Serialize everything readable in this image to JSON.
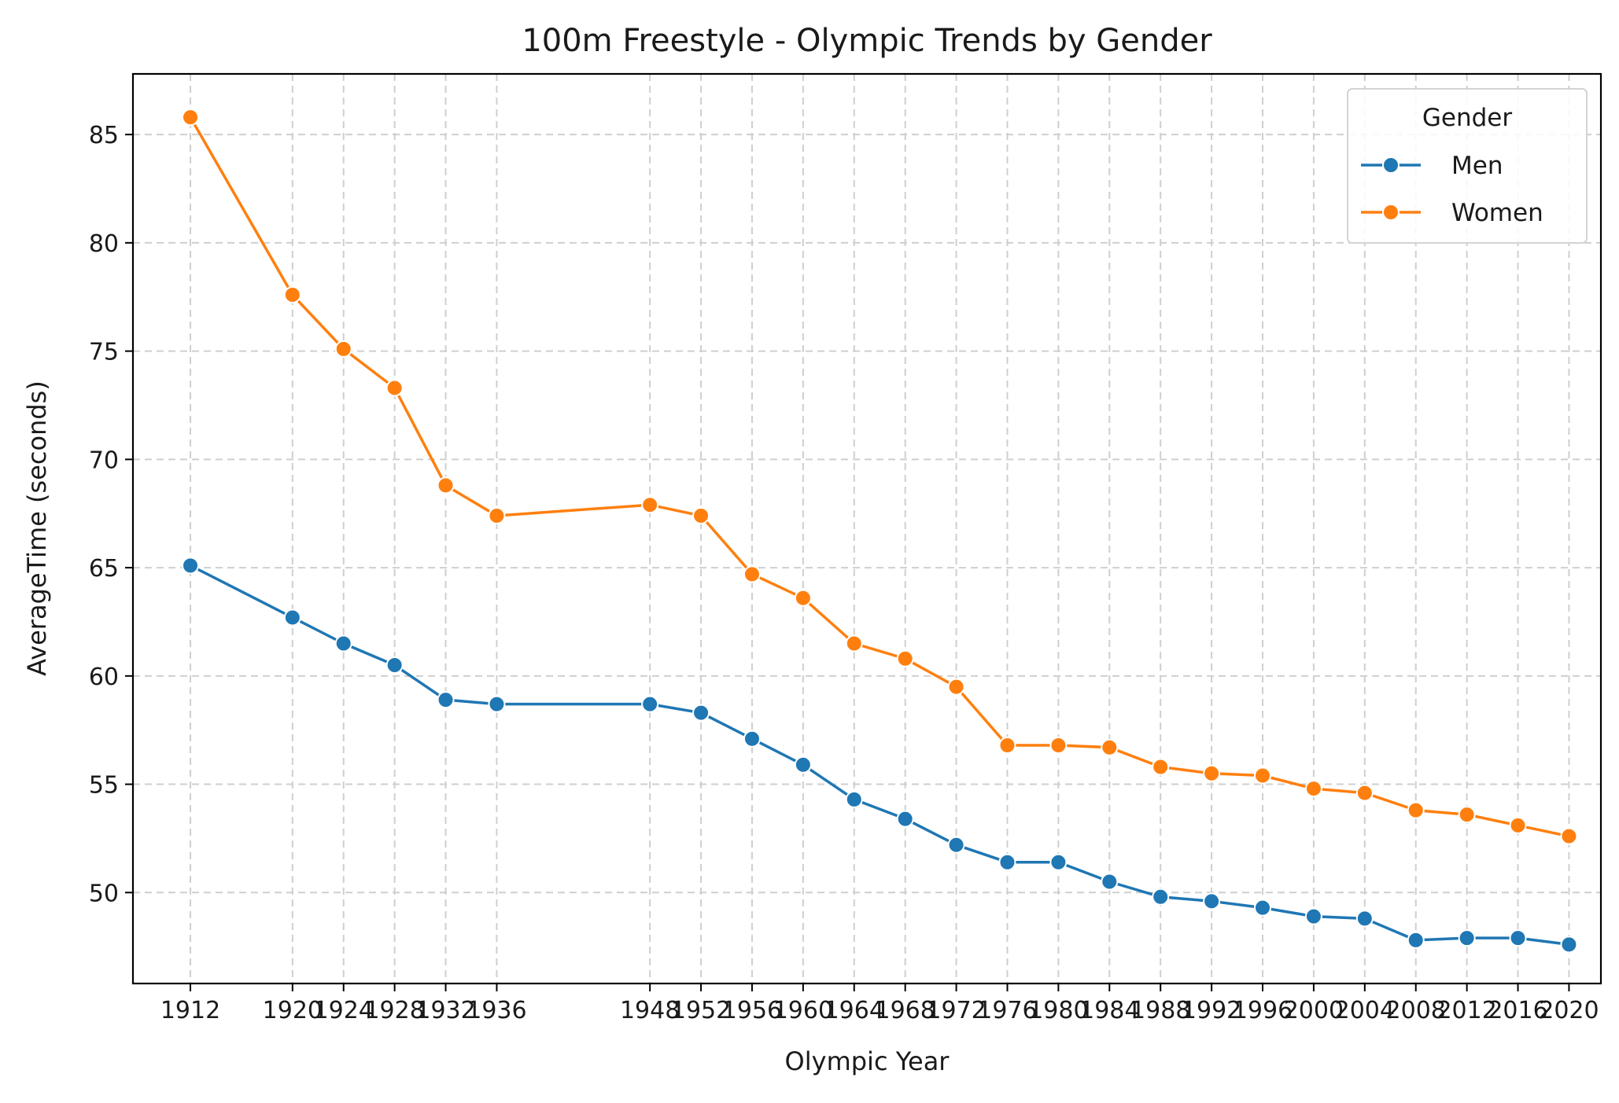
{
  "chart_data": {
    "type": "line",
    "title": "100m Freestyle - Olympic Trends by Gender",
    "xlabel": "Olympic Year",
    "ylabel": "AverageTime (seconds)",
    "xlim": [
      1907.5,
      2022.5
    ],
    "ylim": [
      45.8,
      87.8
    ],
    "x": [
      1912,
      1920,
      1924,
      1928,
      1932,
      1936,
      1948,
      1952,
      1956,
      1960,
      1964,
      1968,
      1972,
      1976,
      1980,
      1984,
      1988,
      1992,
      1996,
      2000,
      2004,
      2008,
      2012,
      2016,
      2020
    ],
    "x_tick_labels": [
      "1912",
      "1920",
      "1924",
      "1928",
      "1932",
      "1936",
      "1948",
      "1952",
      "1956",
      "1960",
      "1964",
      "1968",
      "1972",
      "1976",
      "1980",
      "1984",
      "1988",
      "1992",
      "1996",
      "2000",
      "2004",
      "2008",
      "2012",
      "2016",
      "2020"
    ],
    "y_ticks": [
      50,
      55,
      60,
      65,
      70,
      75,
      80,
      85
    ],
    "grid": true,
    "legend": {
      "title": "Gender",
      "placement": "top-right"
    },
    "series": [
      {
        "name": "Men",
        "color": "#1f77b4",
        "values": [
          65.1,
          62.7,
          61.5,
          60.5,
          58.9,
          58.7,
          58.7,
          58.3,
          57.1,
          55.9,
          54.3,
          53.4,
          52.2,
          51.4,
          51.4,
          50.5,
          49.8,
          49.6,
          49.3,
          48.9,
          48.8,
          47.8,
          47.9,
          47.9,
          47.6
        ]
      },
      {
        "name": "Women",
        "color": "#ff7f0e",
        "values": [
          85.8,
          77.6,
          75.1,
          73.3,
          68.8,
          67.4,
          67.9,
          67.4,
          64.7,
          63.6,
          61.5,
          60.8,
          59.5,
          56.8,
          56.8,
          56.7,
          55.8,
          55.5,
          55.4,
          54.8,
          54.6,
          53.8,
          53.6,
          53.1,
          52.6
        ]
      }
    ]
  }
}
